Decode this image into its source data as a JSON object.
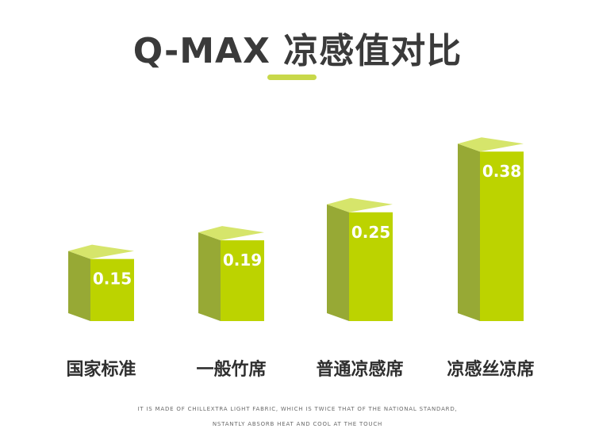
{
  "chart_data": {
    "type": "bar",
    "title": "Q-MAX 凉感值对比",
    "categories": [
      "国家标准",
      "一般竹席",
      "普通凉感席",
      "凉感丝凉席"
    ],
    "values": [
      0.15,
      0.19,
      0.25,
      0.38
    ],
    "value_labels": [
      "0.15",
      "0.19",
      "0.25",
      "0.38"
    ],
    "ylim": [
      0,
      0.45
    ],
    "grid": false,
    "colors": {
      "front": "#bcd300",
      "side": "#97a935",
      "top": "#d6e56b",
      "accent": "#c8d84a"
    }
  },
  "footnote": {
    "line1": "IT IS MADE OF CHILLEXTRA LIGHT FABRIC, WHICH IS TWICE THAT OF THE NATIONAL STANDARD,",
    "line2": "NSTANTLY ABSORB HEAT AND COOL AT THE TOUCH"
  }
}
